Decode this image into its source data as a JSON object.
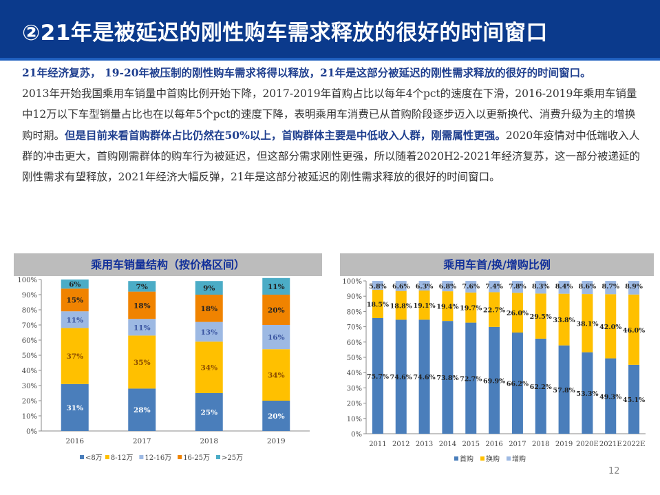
{
  "header": {
    "title": "②21年是被延迟的刚性购车需求释放的很好的时间窗口"
  },
  "text": {
    "p1": "21年经济复苏， 19-20年被压制的刚性购车需求将得以释放，21年是这部分被延迟的刚性需求释放的很好的时间窗口。",
    "p2a": "2013年开始我国乘用车销量中首购比例开始下降，2017-2019年首购占比以每年4个pct的速度在下滑，2016-2019年乘用车销量中12万以下车型销量占比也在以每年5个pct的速度下降，表明乘用车消费已从首购阶段逐步迈入以更新换代、消费升级为主的增换购时期。",
    "p2b": "但是目前来看首购群体占比仍然在50%以上，首购群体主要是中低收入人群，刚需属性更强。",
    "p2c": "2020年疫情对中低端收入人群的冲击更大，首购刚需群体的购车行为被延迟，但这部分需求刚性更强，所以随着2020H2-2021年经济复苏，这一部分被递延的刚性需求有望释放，2021年经济大幅反弹，21年是这部分被延迟的刚性需求释放的很好的时间窗口。"
  },
  "chart_data": [
    {
      "type": "bar",
      "stacked": true,
      "title": "乘用车销量结构（按价格区间）",
      "categories": [
        "2016",
        "2017",
        "2018",
        "2019"
      ],
      "ylim": [
        0,
        100
      ],
      "yticks": [
        "0%",
        "10%",
        "20%",
        "30%",
        "40%",
        "50%",
        "60%",
        "70%",
        "80%",
        "90%",
        "100%"
      ],
      "series": [
        {
          "name": "<8万",
          "color": "#4a7ebb",
          "values": [
            31,
            28,
            25,
            20
          ],
          "labels": [
            "31%",
            "28%",
            "25%",
            "20%"
          ]
        },
        {
          "name": "8-12万",
          "color": "#ffc000",
          "values": [
            37,
            35,
            34,
            34
          ],
          "labels": [
            "37%",
            "35%",
            "34%",
            "34%"
          ]
        },
        {
          "name": "12-16万",
          "color": "#9db9e3",
          "values": [
            11,
            11,
            13,
            16
          ],
          "labels": [
            "11%",
            "11%",
            "13%",
            "16%"
          ]
        },
        {
          "name": "16-25万",
          "color": "#f08300",
          "values": [
            15,
            18,
            18,
            20
          ],
          "labels": [
            "15%",
            "18%",
            "18%",
            "20%"
          ]
        },
        {
          "name": ">25万",
          "color": "#4bacc6",
          "values": [
            6,
            7,
            9,
            11
          ],
          "labels": [
            "6%",
            "7%",
            "9%",
            "11%"
          ]
        }
      ],
      "legend": "bottom",
      "grid": false
    },
    {
      "type": "bar",
      "stacked": true,
      "title": "乘用车首/换/增购比例",
      "categories": [
        "2011",
        "2012",
        "2013",
        "2014",
        "2015",
        "2016",
        "2017",
        "2018",
        "2019",
        "2020E",
        "2021E",
        "2022E"
      ],
      "ylim": [
        0,
        100
      ],
      "yticks": [
        "0%",
        "10%",
        "20%",
        "30%",
        "40%",
        "50%",
        "60%",
        "70%",
        "80%",
        "90%",
        "100%"
      ],
      "series": [
        {
          "name": "首购",
          "color": "#4a7ebb",
          "values": [
            75.7,
            74.6,
            74.6,
            73.8,
            72.7,
            69.9,
            66.2,
            62.2,
            57.8,
            53.3,
            49.3,
            45.1
          ],
          "labels": [
            "75.7%",
            "74.6%",
            "74.6%",
            "73.8%",
            "72.7%",
            "69.9%",
            "66.2%",
            "62.2%",
            "57.8%",
            "53.3%",
            "49.3%",
            "45.1%"
          ]
        },
        {
          "name": "换购",
          "color": "#ffc000",
          "values": [
            18.5,
            18.8,
            19.1,
            19.4,
            19.7,
            22.7,
            26.0,
            29.5,
            33.8,
            38.1,
            42.0,
            46.0
          ],
          "labels": [
            "18.5%",
            "18.8%",
            "19.1%",
            "19.4%",
            "19.7%",
            "22.7%",
            "26.0%",
            "29.5%",
            "33.8%",
            "38.1%",
            "42.0%",
            "46.0%"
          ]
        },
        {
          "name": "增购",
          "color": "#9db9e3",
          "values": [
            5.8,
            6.6,
            6.3,
            6.8,
            7.6,
            7.4,
            7.8,
            8.3,
            8.4,
            8.6,
            8.7,
            8.9
          ],
          "labels": [
            "5.8%",
            "6.6%",
            "6.3%",
            "6.8%",
            "7.6%",
            "7.4%",
            "7.8%",
            "8.3%",
            "8.4%",
            "8.6%",
            "8.7%",
            "8.9%"
          ]
        }
      ],
      "legend": "bottom",
      "grid": false
    }
  ],
  "footer": {
    "page_number": "12"
  }
}
